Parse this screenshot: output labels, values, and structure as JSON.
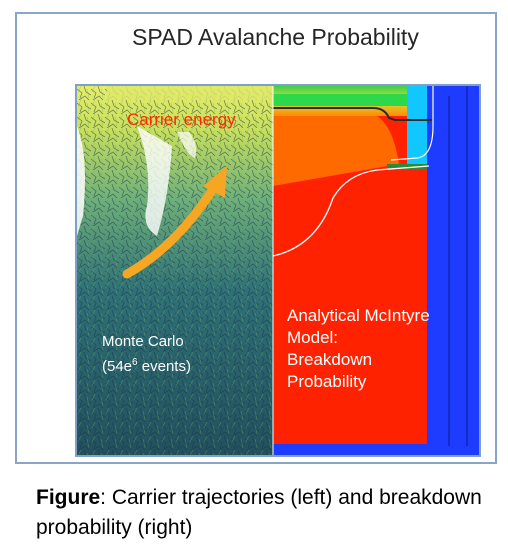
{
  "title": "SPAD Avalanche Probability",
  "left_panel": {
    "energy_label": "Carrier energy",
    "method_line1": "Monte Carlo",
    "method_line2_prefix": "(54e",
    "method_line2_exp": "6",
    "method_line2_suffix": " events)"
  },
  "right_panel": {
    "line1": "Analytical McIntyre",
    "line2": "Model:",
    "line3": "Breakdown",
    "line4": "Probability"
  },
  "caption": {
    "bold": "Figure",
    "text": ": Carrier trajectories (left) and breakdown probability (right)"
  },
  "colors": {
    "frame_border": "#8aa6c6",
    "energy_label": "#ff2a00",
    "arrow": "#f5a623",
    "breakdown_red": "#ff2200",
    "device_blue": "#1e3cff"
  }
}
